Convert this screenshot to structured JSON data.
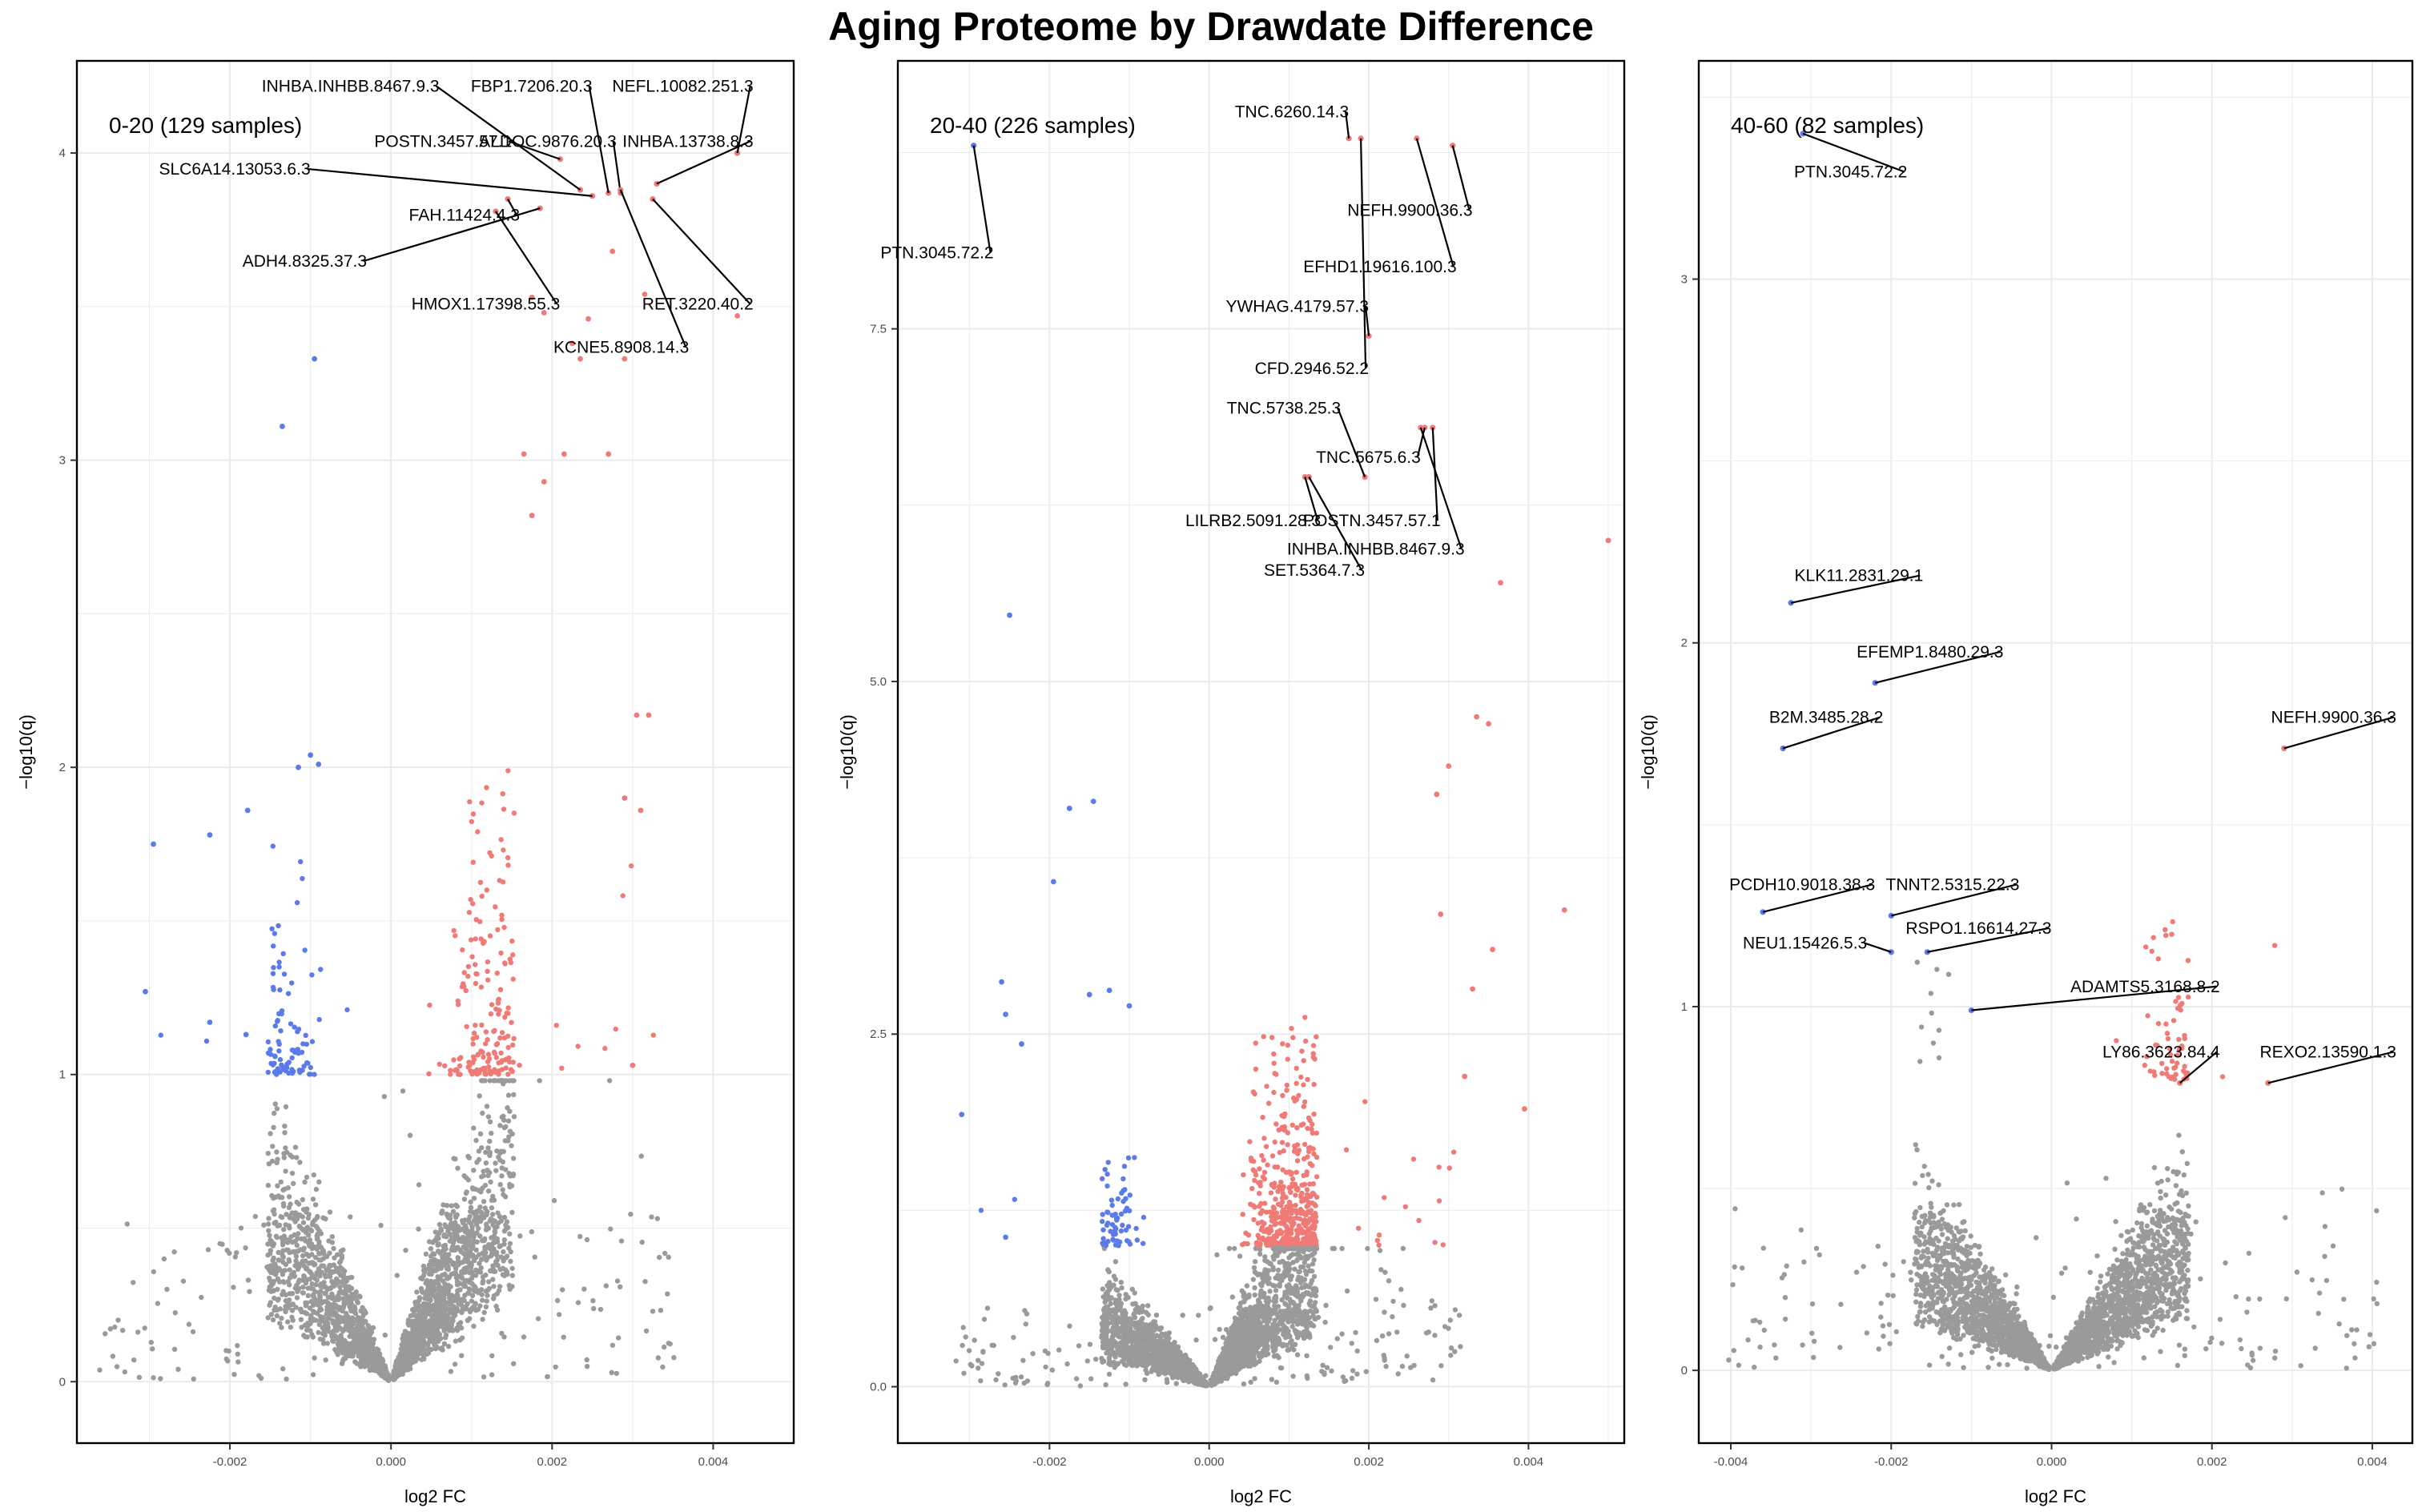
{
  "title": "Aging Proteome by Drawdate Difference",
  "colors": {
    "up": "#F07A76",
    "down": "#5B7BEA",
    "nonsig": "#9A9A9A",
    "grid": "#EBEBEB",
    "frame": "#000000"
  },
  "chart_data": [
    {
      "type": "scatter",
      "panel_label": "0-20 (129 samples)",
      "xlabel": "log2 FC",
      "ylabel": "−log10(q)",
      "xlim": [
        -0.0039,
        0.005
      ],
      "ylim": [
        -0.2,
        4.3
      ],
      "x_ticks": [
        -0.002,
        0.0,
        0.002,
        0.004
      ],
      "x_tick_labels": [
        "-0.002",
        "0.000",
        "0.002",
        "0.004"
      ],
      "y_ticks": [
        0,
        1,
        2,
        3,
        4
      ],
      "y_tick_labels": [
        "0",
        "1",
        "2",
        "3",
        "4"
      ],
      "cloud": {
        "seed": 11,
        "left_n": 1300,
        "right_n": 1700,
        "sig": 1.0,
        "right_scale": 1.2,
        "left_scale": 0.9,
        "spread": 0.0025
      },
      "sig_points": [
        [
          -0.00095,
          3.33,
          "down"
        ],
        [
          -0.00135,
          3.11,
          "down"
        ],
        [
          -0.001,
          2.04,
          "down"
        ],
        [
          -0.0009,
          2.01,
          "down"
        ],
        [
          -0.00115,
          2.0,
          "down"
        ],
        [
          -0.00178,
          1.86,
          "down"
        ],
        [
          -0.00225,
          1.78,
          "down"
        ],
        [
          -0.00295,
          1.75,
          "down"
        ],
        [
          -0.00305,
          1.27,
          "down"
        ],
        [
          -0.00225,
          1.17,
          "down"
        ],
        [
          -0.0018,
          1.13,
          "down"
        ],
        [
          0.0043,
          4.0,
          "up"
        ],
        [
          0.00315,
          3.54,
          "up"
        ],
        [
          0.00275,
          3.68,
          "up"
        ],
        [
          0.0043,
          3.47,
          "up"
        ],
        [
          0.00175,
          3.53,
          "up"
        ],
        [
          0.0019,
          3.48,
          "up"
        ],
        [
          0.00245,
          3.46,
          "up"
        ],
        [
          0.0029,
          3.33,
          "up"
        ],
        [
          0.00235,
          3.33,
          "up"
        ],
        [
          0.00225,
          3.38,
          "up"
        ],
        [
          0.00165,
          3.02,
          "up"
        ],
        [
          0.00215,
          3.02,
          "up"
        ],
        [
          0.0027,
          3.02,
          "up"
        ],
        [
          0.0019,
          2.93,
          "up"
        ],
        [
          0.00175,
          2.82,
          "up"
        ],
        [
          0.00305,
          2.17,
          "up"
        ],
        [
          0.0032,
          2.17,
          "up"
        ],
        [
          0.0029,
          1.9,
          "up"
        ],
        [
          0.0031,
          1.86,
          "up"
        ],
        [
          0.003,
          1.03,
          "up"
        ]
      ],
      "labeled_points": [
        {
          "name": "INHBA.INHBB.8467.9.3",
          "x": 0.00235,
          "y": 3.88,
          "lx": 0.0006,
          "ly": 4.2,
          "anchor": "end"
        },
        {
          "name": "FBP1.7206.20.3",
          "x": 0.0027,
          "y": 3.87,
          "lx": 0.0025,
          "ly": 4.2,
          "anchor": "end"
        },
        {
          "name": "NEFL.10082.251.3",
          "x": 0.0043,
          "y": 4.0,
          "lx": 0.0045,
          "ly": 4.2,
          "anchor": "end"
        },
        {
          "name": "ALDOC.9876.20.3",
          "x": 0.00285,
          "y": 3.87,
          "lx": 0.0028,
          "ly": 4.02,
          "anchor": "end"
        },
        {
          "name": "POSTN.3457.57.1",
          "x": 0.0021,
          "y": 3.98,
          "lx": 0.0015,
          "ly": 4.02,
          "anchor": "end"
        },
        {
          "name": "INHBA.13738.8.3",
          "x": 0.0033,
          "y": 3.9,
          "lx": 0.0045,
          "ly": 4.02,
          "anchor": "end"
        },
        {
          "name": "SLC6A14.13053.6.3",
          "x": 0.0025,
          "y": 3.86,
          "lx": -0.001,
          "ly": 3.93,
          "anchor": "end"
        },
        {
          "name": "FAH.11424.4.3",
          "x": 0.00145,
          "y": 3.85,
          "lx": 0.0016,
          "ly": 3.78,
          "anchor": "end"
        },
        {
          "name": "ADH4.8325.37.3",
          "x": 0.00185,
          "y": 3.82,
          "lx": -0.0003,
          "ly": 3.63,
          "anchor": "end"
        },
        {
          "name": "HMOX1.17398.55.3",
          "x": 0.0013,
          "y": 3.81,
          "lx": 0.0021,
          "ly": 3.49,
          "anchor": "end"
        },
        {
          "name": "RET.3220.40.2",
          "x": 0.00325,
          "y": 3.85,
          "lx": 0.0045,
          "ly": 3.49,
          "anchor": "end"
        },
        {
          "name": "KCNE5.8908.14.3",
          "x": 0.00285,
          "y": 3.88,
          "lx": 0.0037,
          "ly": 3.35,
          "anchor": "end"
        }
      ]
    },
    {
      "type": "scatter",
      "panel_label": "20-40 (226 samples)",
      "xlabel": "log2 FC",
      "ylabel": "−log10(q)",
      "xlim": [
        -0.0039,
        0.0052
      ],
      "ylim": [
        -0.4,
        9.4
      ],
      "x_ticks": [
        -0.002,
        0.0,
        0.002,
        0.004
      ],
      "x_tick_labels": [
        "-0.002",
        "0.000",
        "0.002",
        "0.004"
      ],
      "y_ticks": [
        0,
        2.5,
        5,
        7.5
      ],
      "y_tick_labels": [
        "0.0",
        "2.5",
        "5.0",
        "7.5"
      ],
      "cloud": {
        "seed": 23,
        "left_n": 1400,
        "right_n": 2300,
        "sig": 1.0,
        "right_scale": 1.7,
        "left_scale": 0.85,
        "spread": 0.0022
      },
      "sig_points": [
        [
          -0.0025,
          5.47,
          "down"
        ],
        [
          -0.00175,
          4.1,
          "down"
        ],
        [
          -0.00145,
          4.15,
          "down"
        ],
        [
          -0.00195,
          3.58,
          "down"
        ],
        [
          -0.0026,
          2.87,
          "down"
        ],
        [
          -0.00255,
          2.64,
          "down"
        ],
        [
          -0.00235,
          2.43,
          "down"
        ],
        [
          -0.0031,
          1.93,
          "down"
        ],
        [
          -0.00255,
          1.06,
          "down"
        ],
        [
          -0.0015,
          2.78,
          "down"
        ],
        [
          -0.00125,
          2.81,
          "down"
        ],
        [
          -0.001,
          2.7,
          "down"
        ],
        [
          0.005,
          6.0,
          "up"
        ],
        [
          0.00365,
          5.7,
          "up"
        ],
        [
          0.00445,
          3.38,
          "up"
        ],
        [
          0.00355,
          3.1,
          "up"
        ],
        [
          0.0033,
          2.82,
          "up"
        ],
        [
          0.0032,
          2.2,
          "up"
        ],
        [
          0.00395,
          1.97,
          "up"
        ],
        [
          0.0035,
          4.7,
          "up"
        ],
        [
          0.00335,
          4.75,
          "up"
        ],
        [
          0.003,
          4.4,
          "up"
        ],
        [
          0.00285,
          4.2,
          "up"
        ],
        [
          0.0029,
          3.35,
          "up"
        ]
      ],
      "labeled_points": [
        {
          "name": "TNC.6260.14.3",
          "x": 0.00175,
          "y": 8.85,
          "lx": 0.00175,
          "ly": 9.0,
          "anchor": "end"
        },
        {
          "name": "PTN.3045.72.2",
          "x": -0.00295,
          "y": 8.8,
          "lx": -0.0027,
          "ly": 8.0,
          "anchor": "end"
        },
        {
          "name": "NEFH.9900.36.3",
          "x": 0.00305,
          "y": 8.8,
          "lx": 0.0033,
          "ly": 8.3,
          "anchor": "end"
        },
        {
          "name": "EFHD1.19616.100.3",
          "x": 0.0026,
          "y": 8.85,
          "lx": 0.0031,
          "ly": 7.9,
          "anchor": "end"
        },
        {
          "name": "YWHAG.4179.57.3",
          "x": 0.002,
          "y": 7.45,
          "lx": 0.002,
          "ly": 7.62,
          "anchor": "end"
        },
        {
          "name": "CFD.2946.52.2",
          "x": 0.0019,
          "y": 8.85,
          "lx": 0.002,
          "ly": 7.18,
          "anchor": "end"
        },
        {
          "name": "TNC.5738.25.3",
          "x": 0.00195,
          "y": 6.45,
          "lx": 0.00165,
          "ly": 6.9,
          "anchor": "end"
        },
        {
          "name": "TNC.5675.6.3",
          "x": 0.0027,
          "y": 6.8,
          "lx": 0.00265,
          "ly": 6.55,
          "anchor": "end"
        },
        {
          "name": "POSTN.3457.57.1",
          "x": 0.0028,
          "y": 6.8,
          "lx": 0.0029,
          "ly": 6.1,
          "anchor": "end"
        },
        {
          "name": "INHBA.INHBB.8467.9.3",
          "x": 0.00265,
          "y": 6.8,
          "lx": 0.0032,
          "ly": 5.9,
          "anchor": "end"
        },
        {
          "name": "LILRB2.5091.28.3",
          "x": 0.0012,
          "y": 6.45,
          "lx": 0.0014,
          "ly": 6.1,
          "anchor": "end"
        },
        {
          "name": "SET.5364.7.3",
          "x": 0.00125,
          "y": 6.45,
          "lx": 0.00195,
          "ly": 5.75,
          "anchor": "end"
        }
      ]
    },
    {
      "type": "scatter",
      "panel_label": "40-60 (82 samples)",
      "xlabel": "log2 FC",
      "ylabel": "−log10(q)",
      "xlim": [
        -0.0044,
        0.0045
      ],
      "ylim": [
        -0.2,
        3.6
      ],
      "x_ticks": [
        -0.004,
        -0.002,
        0.0,
        0.002,
        0.004
      ],
      "x_tick_labels": [
        "-0.004",
        "-0.002",
        "0.000",
        "0.002",
        "0.004"
      ],
      "y_ticks": [
        0,
        1,
        2,
        3
      ],
      "y_tick_labels": [
        "0",
        "1",
        "2",
        "3"
      ],
      "cloud": {
        "seed": 37,
        "left_n": 1500,
        "right_n": 1700,
        "sig": 0.8,
        "right_scale": 0.6,
        "left_scale": 0.55,
        "spread": 0.0028
      },
      "sig_points": [
        [
          -0.00325,
          2.11,
          "down"
        ],
        [
          -0.0022,
          1.89,
          "down"
        ],
        [
          -0.00335,
          1.71,
          "down"
        ],
        [
          -0.0036,
          1.26,
          "down"
        ],
        [
          -0.002,
          1.15,
          "down"
        ],
        [
          -0.00155,
          1.15,
          "down"
        ],
        [
          -0.002,
          1.25,
          "down"
        ],
        [
          0.0029,
          1.71,
          "up"
        ]
      ],
      "labeled_points": [
        {
          "name": "PTN.3045.72.2",
          "x": -0.0031,
          "y": 3.4,
          "lx": -0.0018,
          "ly": 3.28,
          "anchor": "end"
        },
        {
          "name": "KLK11.2831.29.1",
          "x": -0.00325,
          "y": 2.11,
          "lx": -0.0016,
          "ly": 2.17,
          "anchor": "end"
        },
        {
          "name": "EFEMP1.8480.29.3",
          "x": -0.0022,
          "y": 1.89,
          "lx": -0.0006,
          "ly": 1.96,
          "anchor": "end"
        },
        {
          "name": "B2M.3485.28.2",
          "x": -0.00335,
          "y": 1.71,
          "lx": -0.0021,
          "ly": 1.78,
          "anchor": "end"
        },
        {
          "name": "NEFH.9900.36.3",
          "x": 0.0029,
          "y": 1.71,
          "lx": 0.0043,
          "ly": 1.78,
          "anchor": "end"
        },
        {
          "name": "PCDH10.9018.38.3",
          "x": -0.0036,
          "y": 1.26,
          "lx": -0.0022,
          "ly": 1.32,
          "anchor": "end"
        },
        {
          "name": "TNNT2.5315.22.3",
          "x": -0.002,
          "y": 1.25,
          "lx": -0.0004,
          "ly": 1.32,
          "anchor": "end"
        },
        {
          "name": "RSPO1.16614.27.3",
          "x": -0.00155,
          "y": 1.15,
          "lx": 0.0,
          "ly": 1.2,
          "anchor": "end"
        },
        {
          "name": "NEU1.15426.5.3",
          "x": -0.002,
          "y": 1.15,
          "lx": -0.0023,
          "ly": 1.16,
          "anchor": "end"
        },
        {
          "name": "ADAMTS5.3168.8.2",
          "x": -0.001,
          "y": 0.99,
          "lx": 0.0021,
          "ly": 1.04,
          "anchor": "end"
        },
        {
          "name": "LY86.3623.84.4",
          "x": 0.0016,
          "y": 0.79,
          "lx": 0.0021,
          "ly": 0.86,
          "anchor": "end"
        },
        {
          "name": "REXO2.13590.1.3",
          "x": 0.0027,
          "y": 0.79,
          "lx": 0.0043,
          "ly": 0.86,
          "anchor": "end"
        }
      ]
    }
  ]
}
